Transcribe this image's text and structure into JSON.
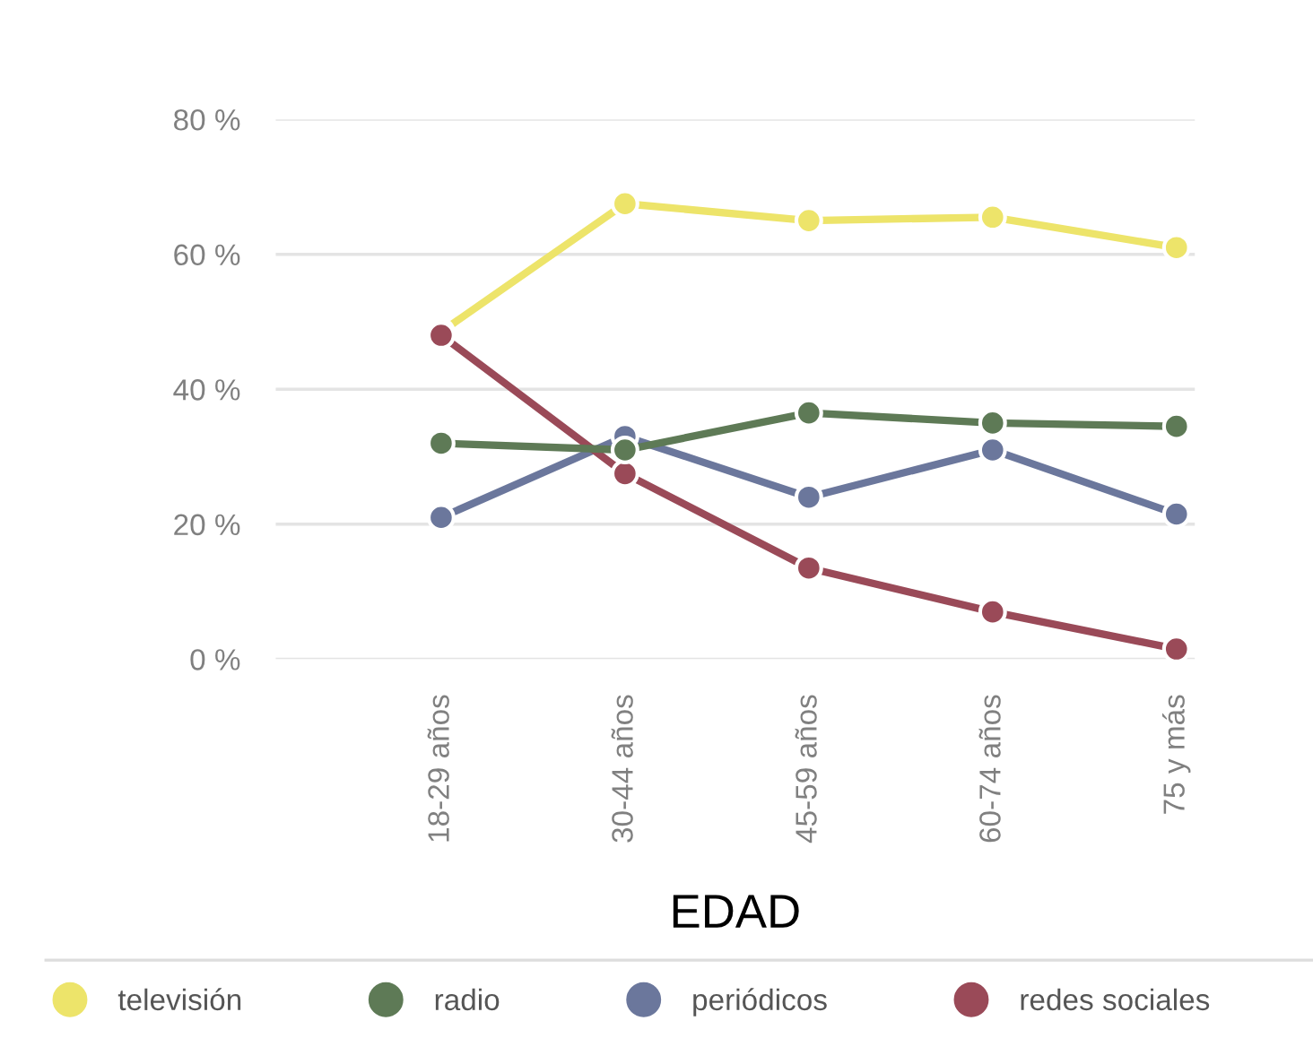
{
  "chart_data": {
    "type": "line",
    "xlabel": "EDAD",
    "categories": [
      "18-29 años",
      "30-44 años",
      "45-59 años",
      "60-74 años",
      "75 y más"
    ],
    "series": [
      {
        "name": "televisión",
        "color": "#ede46a",
        "values": [
          48.5,
          67.5,
          65,
          65.5,
          61
        ]
      },
      {
        "name": "radio",
        "color": "#5e7a56",
        "values": [
          32,
          31,
          36.5,
          35,
          34.5
        ]
      },
      {
        "name": "periódicos",
        "color": "#6b779c",
        "values": [
          21,
          33,
          24,
          31,
          21.5
        ]
      },
      {
        "name": "redes sociales",
        "color": "#9a4a58",
        "values": [
          48,
          27.5,
          13.5,
          7,
          1.5
        ]
      }
    ],
    "ylim": [
      0,
      80
    ],
    "yticks": [
      {
        "value": 0,
        "label": "0 %"
      },
      {
        "value": 20,
        "label": "20 %"
      },
      {
        "value": 40,
        "label": "40 %"
      },
      {
        "value": 60,
        "label": "60 %"
      },
      {
        "value": 80,
        "label": "80 %"
      }
    ],
    "grid": "y",
    "legend": "bottom",
    "marker": "circle",
    "line_style": "solid"
  }
}
